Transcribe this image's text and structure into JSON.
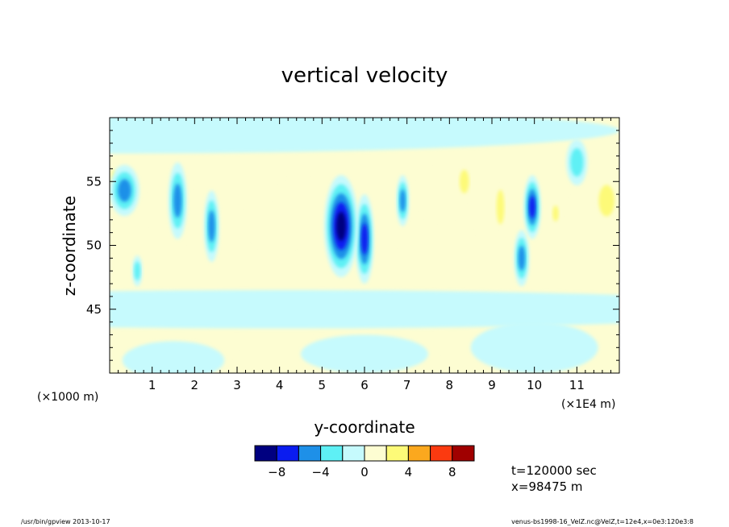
{
  "chart_data": {
    "type": "heatmap",
    "title": "vertical velocity",
    "xlabel": "y-coordinate",
    "ylabel": "z-coordinate",
    "x_unit_left": "(×1000 m)",
    "x_unit_right": "(×1E4 m)",
    "xlim": [
      0,
      12
    ],
    "ylim": [
      40,
      60
    ],
    "x_ticks": [
      "1",
      "2",
      "3",
      "4",
      "5",
      "6",
      "7",
      "8",
      "9",
      "10",
      "11"
    ],
    "y_ticks": [
      "45",
      "50",
      "55"
    ],
    "colorbar": {
      "levels": [
        -10,
        -8,
        -6,
        -4,
        -2,
        0,
        2,
        4,
        6,
        8,
        10
      ],
      "colors": [
        "#000080",
        "#0a1cf0",
        "#1e90e8",
        "#5ef0f5",
        "#c6fafd",
        "#fdfdd2",
        "#fdfa78",
        "#fba81e",
        "#fb3a10",
        "#a00000"
      ],
      "tick_labels": [
        "−8",
        "−4",
        "0",
        "4",
        "8"
      ],
      "tick_values": [
        -8,
        -4,
        0,
        4,
        8
      ]
    },
    "features": [
      {
        "x": 0.35,
        "z": 54.3,
        "w": 0.35,
        "h": 2.0,
        "value": -5
      },
      {
        "x": 0.65,
        "z": 48.0,
        "w": 0.12,
        "h": 1.2,
        "value": -4
      },
      {
        "x": 1.6,
        "z": 53.5,
        "w": 0.22,
        "h": 3.0,
        "value": -6
      },
      {
        "x": 2.4,
        "z": 51.5,
        "w": 0.18,
        "h": 2.8,
        "value": -5
      },
      {
        "x": 5.45,
        "z": 51.5,
        "w": 0.4,
        "h": 4.0,
        "value": -9
      },
      {
        "x": 6.0,
        "z": 50.5,
        "w": 0.22,
        "h": 3.5,
        "value": -8
      },
      {
        "x": 6.9,
        "z": 53.5,
        "w": 0.15,
        "h": 2.0,
        "value": -5
      },
      {
        "x": 9.7,
        "z": 49.0,
        "w": 0.18,
        "h": 2.2,
        "value": -6
      },
      {
        "x": 9.95,
        "z": 53.0,
        "w": 0.2,
        "h": 2.5,
        "value": -8
      },
      {
        "x": 11.0,
        "z": 56.5,
        "w": 0.25,
        "h": 1.8,
        "value": -4
      },
      {
        "x": 0.1,
        "z": 55.3,
        "w": 0.1,
        "h": 1.0,
        "value": 4
      },
      {
        "x": 8.35,
        "z": 55.0,
        "w": 0.18,
        "h": 1.5,
        "value": 4
      },
      {
        "x": 9.2,
        "z": 53.0,
        "w": 0.15,
        "h": 2.2,
        "value": 4
      },
      {
        "x": 10.5,
        "z": 52.5,
        "w": 0.12,
        "h": 1.0,
        "value": 4
      },
      {
        "x": 11.7,
        "z": 53.5,
        "w": 0.3,
        "h": 2.0,
        "value": 4
      },
      {
        "x": 1.05,
        "z": 53.0,
        "w": 0.2,
        "h": 3.0,
        "value": 2
      },
      {
        "x": 2.1,
        "z": 52.0,
        "w": 0.25,
        "h": 3.0,
        "value": 2
      },
      {
        "x": 3.5,
        "z": 52.5,
        "w": 0.35,
        "h": 3.0,
        "value": 2
      },
      {
        "x": 4.45,
        "z": 53.0,
        "w": 0.45,
        "h": 3.5,
        "value": 2
      },
      {
        "x": 6.55,
        "z": 51.0,
        "w": 0.25,
        "h": 3.0,
        "value": 2
      },
      {
        "x": 7.8,
        "z": 54.0,
        "w": 0.7,
        "h": 2.5,
        "value": 2
      },
      {
        "x": 8.9,
        "z": 52.5,
        "w": 0.4,
        "h": 3.0,
        "value": 2
      },
      {
        "x": 11.3,
        "z": 52.0,
        "w": 0.6,
        "h": 3.5,
        "value": 2
      },
      {
        "x": 4.2,
        "z": 43.5,
        "w": 0.8,
        "h": 1.0,
        "value": 2
      },
      {
        "x": 7.8,
        "z": 42.5,
        "w": 1.0,
        "h": 1.3,
        "value": 2
      },
      {
        "x": 2.5,
        "z": 42.0,
        "w": 0.6,
        "h": 1.5,
        "value": 2
      },
      {
        "x": 0.0,
        "z": 59.0,
        "w": 12.0,
        "h": 1.8,
        "value": -2
      },
      {
        "x": 4.0,
        "z": 45.0,
        "w": 12.0,
        "h": 1.5,
        "value": -2
      },
      {
        "x": 1.5,
        "z": 41.0,
        "w": 1.2,
        "h": 1.5,
        "value": -2
      },
      {
        "x": 6.0,
        "z": 41.5,
        "w": 1.5,
        "h": 1.5,
        "value": -2
      },
      {
        "x": 10.0,
        "z": 42.0,
        "w": 1.5,
        "h": 2.0,
        "value": -2
      }
    ]
  },
  "info": {
    "time": "t=120000 sec",
    "x": "x=98475 m"
  },
  "footer": {
    "left": "/usr/bin/gpview  2013-10-17",
    "right": "venus-bs1998-16_VelZ.nc@VelZ,t=12e4,x=0e3:120e3:8"
  }
}
